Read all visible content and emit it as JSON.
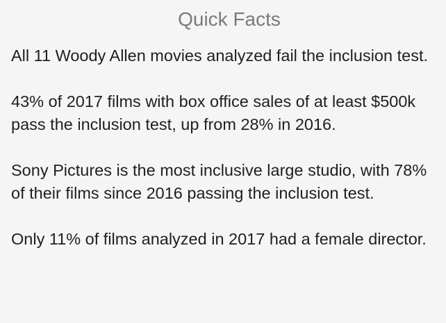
{
  "panel": {
    "title": "Quick Facts",
    "facts": [
      "All 11 Woody Allen movies analyzed fail the inclusion test.",
      "43% of 2017 films with box office sales of at least $500k pass the inclusion test, up from 28% in 2016.",
      "Sony Pictures is the most inclusive large studio, with 78% of their films since 2016 passing the inclusion test.",
      "Only 11% of films analyzed in 2017 had a female director."
    ]
  }
}
